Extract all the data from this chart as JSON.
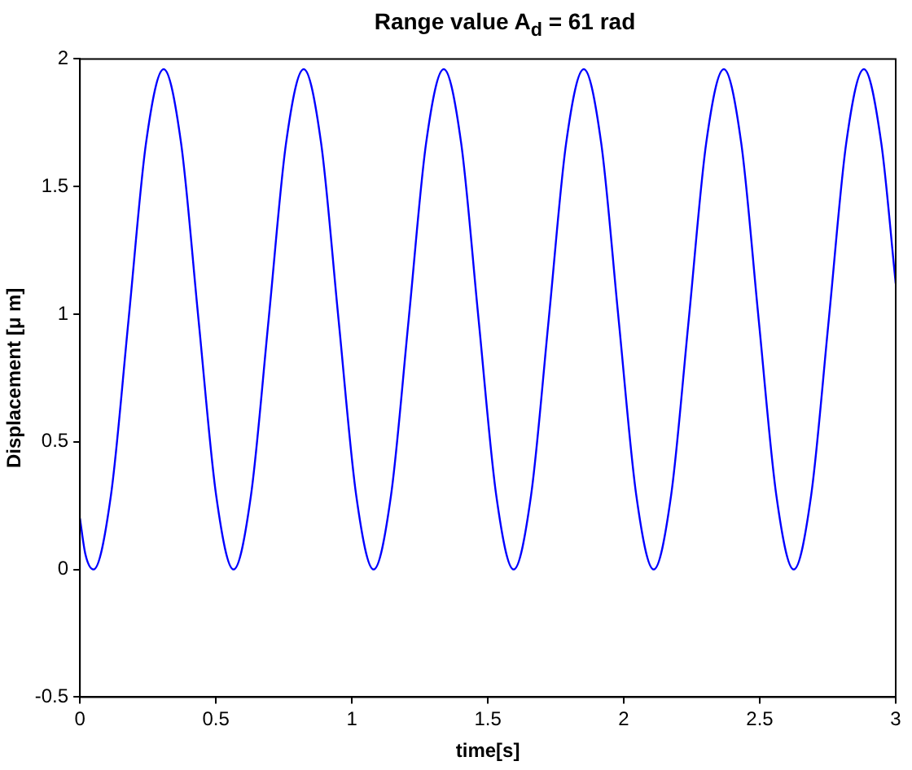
{
  "chart_data": {
    "type": "line",
    "title": "Range value A$_{d}$ = 61 rad",
    "xlabel": "time[s]",
    "ylabel": "Displacement [μ m]",
    "x": [
      0,
      0.02,
      0.05,
      0.114,
      0.179,
      0.243,
      0.308,
      0.372,
      0.436,
      0.501,
      0.565,
      0.629,
      0.694,
      0.758,
      0.823,
      0.887,
      0.951,
      1.016,
      1.08,
      1.144,
      1.209,
      1.273,
      1.338,
      1.402,
      1.466,
      1.531,
      1.595,
      1.659,
      1.724,
      1.788,
      1.853,
      1.917,
      1.981,
      2.046,
      2.11,
      2.174,
      2.239,
      2.303,
      2.368,
      2.432,
      2.496,
      2.561,
      2.625,
      2.689,
      2.754,
      2.818,
      2.883,
      2.947,
      3.0
    ],
    "series": [
      {
        "color": "#0000ff",
        "values": [
          0.2,
          0.06,
          0,
          0.29,
          0.98,
          1.67,
          1.96,
          1.67,
          0.98,
          0.29,
          0,
          0.29,
          0.98,
          1.67,
          1.96,
          1.67,
          0.98,
          0.29,
          0,
          0.29,
          0.98,
          1.67,
          1.96,
          1.67,
          0.98,
          0.29,
          0,
          0.29,
          0.98,
          1.67,
          1.96,
          1.67,
          0.98,
          0.29,
          0,
          0.29,
          0.98,
          1.67,
          1.96,
          1.67,
          0.98,
          0.29,
          0,
          0.29,
          0.98,
          1.67,
          1.96,
          1.67,
          1.12
        ]
      }
    ],
    "xlim": [
      0,
      3
    ],
    "xticks": [
      0,
      0.5,
      1,
      1.5,
      2,
      2.5,
      3
    ],
    "ylim": [
      -0.5,
      2
    ],
    "yticks": [
      -0.5,
      0,
      0.5,
      1,
      1.5,
      2
    ],
    "grid": false,
    "legend": false,
    "marker": "none",
    "line_style": "solid"
  }
}
